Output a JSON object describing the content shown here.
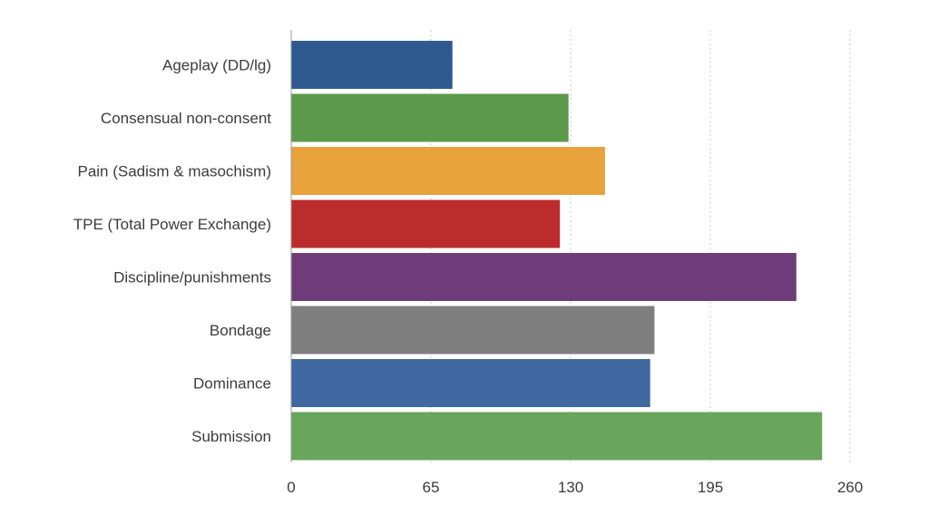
{
  "chart_data": {
    "type": "bar",
    "orientation": "horizontal",
    "title": "",
    "xlabel": "",
    "ylabel": "",
    "categories": [
      "Ageplay (DD/lg)",
      "Consensual non-consent",
      "Pain (Sadism & masochism)",
      "TPE (Total Power Exchange)",
      "Discipline/punishments",
      "Bondage",
      "Dominance",
      "Submission"
    ],
    "values": [
      75,
      129,
      146,
      125,
      235,
      169,
      167,
      247
    ],
    "colors": [
      "#2e5a8f",
      "#5b9a4a",
      "#e8a23b",
      "#bd2c2c",
      "#6e3d79",
      "#7f7f7f",
      "#3f69a0",
      "#6aa55c"
    ],
    "xlim": [
      0,
      260
    ],
    "xticks": [
      "0",
      "65",
      "130",
      "195",
      "260"
    ],
    "grid": "vertical-dotted",
    "legend": "none"
  }
}
